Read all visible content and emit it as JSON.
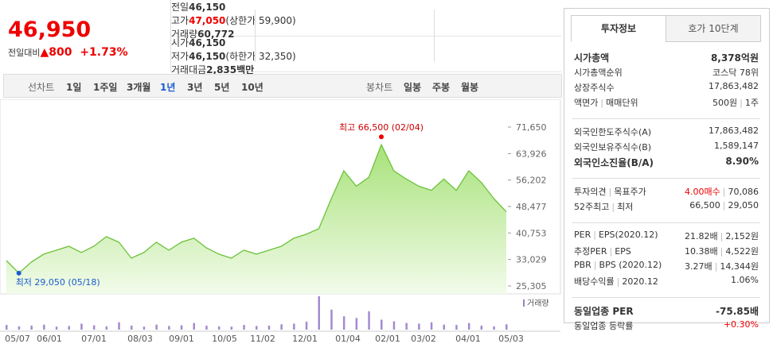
{
  "quote": {
    "price": "46,950",
    "change_label": "전일대비",
    "change": "800",
    "change_pct": "+1.73%"
  },
  "summary": [
    [
      {
        "label": "전일",
        "value": "46,150"
      },
      {
        "label": "고가",
        "value": "47,050",
        "extra": "(상한가 59,900)",
        "red": true
      },
      {
        "label": "거래량",
        "value": "60,772"
      }
    ],
    [
      {
        "label": "시가",
        "value": "46,150"
      },
      {
        "label": "저가",
        "value": "46,150",
        "extra": "(하한가 32,350)"
      },
      {
        "label": "거래대금",
        "value": "2,835",
        "extra": "백만"
      }
    ]
  ],
  "toolbar": {
    "line_label": "선차트",
    "periods": [
      "1일",
      "1주일",
      "3개월",
      "1년",
      "3년",
      "5년",
      "10년"
    ],
    "selected_index": 3,
    "candle_label": "봉차트",
    "candles": [
      "일봉",
      "주봉",
      "월봉"
    ]
  },
  "chart_data": {
    "type": "line",
    "color": "#6cc23a",
    "values": [
      32730,
      29050,
      32270,
      34600,
      35740,
      36900,
      35050,
      36900,
      39700,
      38070,
      33420,
      35050,
      38070,
      35740,
      38070,
      39230,
      36440,
      34600,
      33420,
      35740,
      34600,
      35740,
      36900,
      39230,
      40390,
      42010,
      50800,
      58900,
      54400,
      57000,
      66500,
      58900,
      56500,
      54400,
      53200,
      56500,
      53200,
      58900,
      55500,
      50800,
      46950
    ],
    "volume": [
      14,
      10,
      12,
      15,
      9,
      11,
      18,
      13,
      10,
      22,
      12,
      9,
      15,
      11,
      13,
      20,
      12,
      10,
      9,
      14,
      11,
      12,
      16,
      18,
      24,
      100,
      60,
      40,
      35,
      55,
      30,
      25,
      20,
      18,
      22,
      15,
      14,
      20,
      12,
      10,
      16
    ],
    "volume_label": "거래량",
    "ylim": [
      25305,
      71650
    ],
    "yticks": [
      {
        "value": 25305,
        "label": "25,305"
      },
      {
        "value": 33029,
        "label": "33,029"
      },
      {
        "value": 40753,
        "label": "40,753"
      },
      {
        "value": 48477,
        "label": "48,477"
      },
      {
        "value": 56202,
        "label": "56,202"
      },
      {
        "value": 63926,
        "label": "63,926"
      },
      {
        "value": 71650,
        "label": "71,650"
      }
    ],
    "x_labels": [
      "05/07",
      "06/01",
      "07/01",
      "08/03",
      "09/01",
      "10/05",
      "11/02",
      "12/01",
      "01/04",
      "02/01",
      "03/02",
      "04/01",
      "05/03"
    ],
    "max_annotation": {
      "index": 30,
      "text": "최고 66,500 (02/04)"
    },
    "min_annotation": {
      "index": 1,
      "text": "최저 29,050 (05/18)"
    }
  },
  "side": {
    "tabs": [
      "투자정보",
      "호가 10단계"
    ],
    "sections": [
      [
        {
          "label": [
            "시가총액"
          ],
          "values": [
            "8,378억원"
          ],
          "bold": true
        },
        {
          "label": [
            "시가총액순위"
          ],
          "values": [
            "코스닥 78위"
          ]
        },
        {
          "label": [
            "상장주식수"
          ],
          "values": [
            "17,863,482"
          ]
        },
        {
          "label": [
            "액면가",
            "매매단위"
          ],
          "values": [
            "500원",
            "1주"
          ]
        }
      ],
      [
        {
          "label": [
            "외국인한도주식수(A)"
          ],
          "values": [
            "17,863,482"
          ]
        },
        {
          "label": [
            "외국인보유주식수(B)"
          ],
          "values": [
            "1,589,147"
          ]
        },
        {
          "label": [
            "외국인소진율(B/A)"
          ],
          "values": [
            "8.90%"
          ],
          "bold": true
        }
      ],
      [
        {
          "label": [
            "투자의견",
            "목표주가"
          ],
          "values": [
            "4.00매수",
            "70,086"
          ],
          "red_first": true
        },
        {
          "label": [
            "52주최고",
            "최저"
          ],
          "values": [
            "66,500",
            "29,050"
          ]
        }
      ],
      [
        {
          "label": [
            "PER",
            "EPS(2020.12)"
          ],
          "values": [
            "21.82배",
            "2,152원"
          ]
        },
        {
          "label": [
            "추정PER",
            "EPS"
          ],
          "values": [
            "10.38배",
            "4,522원"
          ]
        },
        {
          "label": [
            "PBR",
            "BPS (2020.12)"
          ],
          "values": [
            "3.27배",
            "14,344원"
          ]
        },
        {
          "label": [
            "배당수익률",
            "2020.12"
          ],
          "values": [
            "1.06%"
          ]
        }
      ],
      [
        {
          "label": [
            "동일업종 PER"
          ],
          "values": [
            "-75.85배"
          ],
          "bold": true
        },
        {
          "label": [
            "동일업종 등락률"
          ],
          "values": [
            "+0.30%"
          ],
          "red_first": true
        }
      ]
    ]
  }
}
